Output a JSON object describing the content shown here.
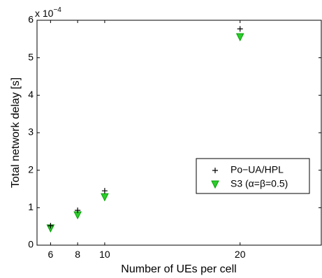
{
  "chart_data": {
    "type": "scatter",
    "title": "",
    "xlabel": "Number of UEs per cell",
    "ylabel": "Total network delay [s]",
    "y_multiplier": {
      "base": "x 10",
      "exponent": "−4"
    },
    "xlim": [
      5,
      26
    ],
    "ylim": [
      0,
      6
    ],
    "xticks": [
      6,
      8,
      10,
      20
    ],
    "yticks": [
      0,
      1,
      2,
      3,
      4,
      5,
      6
    ],
    "grid": false,
    "legend_position": "center-right",
    "series": [
      {
        "name": "Po−UA/HPL",
        "marker": "plus",
        "color": "#000000",
        "x": [
          6,
          8,
          10,
          20
        ],
        "y": [
          0.52,
          0.93,
          1.45,
          5.77
        ]
      },
      {
        "name": "S3 (α=β=0.5)",
        "marker": "triangle-down",
        "color": "#00ff00",
        "x": [
          6,
          8,
          10,
          20
        ],
        "y": [
          0.45,
          0.8,
          1.28,
          5.55
        ]
      }
    ]
  }
}
